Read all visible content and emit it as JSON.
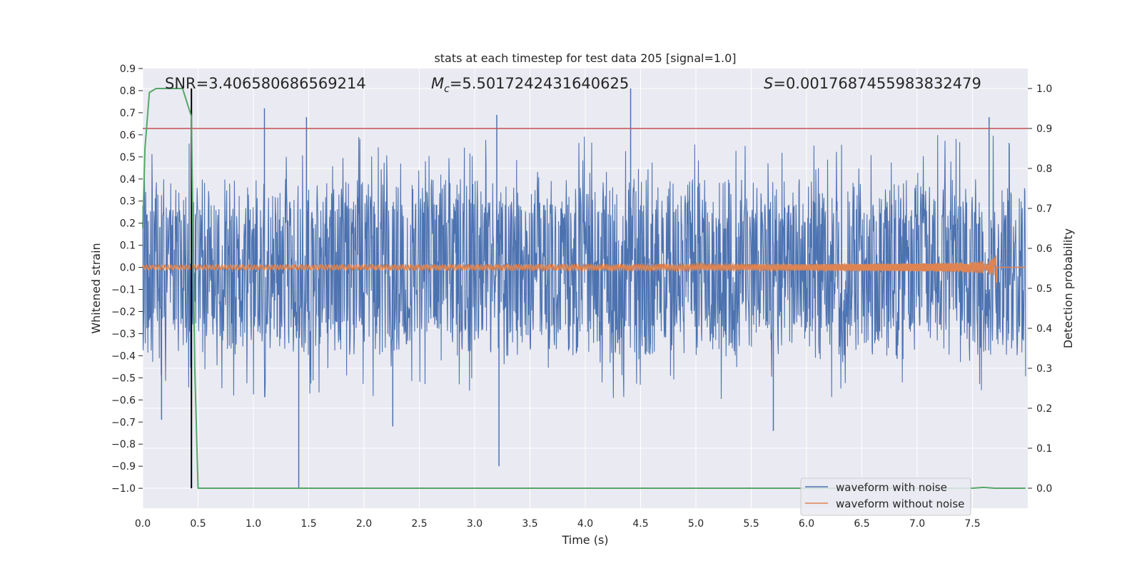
{
  "chart_data": {
    "type": "line",
    "title": "stats at each timestep for test data 205 [signal=1.0]",
    "xlabel": "Time (s)",
    "ylabel": "Whitened strain",
    "y2label": "Detection probability",
    "xlim": [
      0.0,
      8.0
    ],
    "ylim": [
      -1.09,
      0.9
    ],
    "y2lim": [
      -0.05,
      1.05
    ],
    "xticks": [
      0.0,
      0.5,
      1.0,
      1.5,
      2.0,
      2.5,
      3.0,
      3.5,
      4.0,
      4.5,
      5.0,
      5.5,
      6.0,
      6.5,
      7.0,
      7.5
    ],
    "xtick_labels": [
      "0.0",
      "0.5",
      "1.0",
      "1.5",
      "2.0",
      "2.5",
      "3.0",
      "3.5",
      "4.0",
      "4.5",
      "5.0",
      "5.5",
      "6.0",
      "6.5",
      "7.0",
      "7.5"
    ],
    "yticks": [
      0.9,
      0.8,
      0.7,
      0.6,
      0.5,
      0.4,
      0.3,
      0.2,
      0.1,
      0.0,
      -0.1,
      -0.2,
      -0.3,
      -0.4,
      -0.5,
      -0.6,
      -0.7,
      -0.8,
      -0.9,
      -1.0
    ],
    "ytick_labels": [
      "0.9",
      "0.8",
      "0.7",
      "0.6",
      "0.5",
      "0.4",
      "0.3",
      "0.2",
      "0.1",
      "0.0",
      "−0.1",
      "−0.2",
      "−0.3",
      "−0.4",
      "−0.5",
      "−0.6",
      "−0.7",
      "−0.8",
      "−0.9",
      "−1.0"
    ],
    "y2ticks": [
      1.0,
      0.9,
      0.8,
      0.7,
      0.6,
      0.5,
      0.4,
      0.3,
      0.2,
      0.1,
      0.0
    ],
    "y2tick_labels": [
      "1.0",
      "0.9",
      "0.8",
      "0.7",
      "0.6",
      "0.5",
      "0.4",
      "0.3",
      "0.2",
      "0.1",
      "0.0"
    ],
    "annotations": {
      "snr": "SNR=3.406580686569214",
      "mc_symbol": "M",
      "mc_sub": "c",
      "mc_value": "=5.5017242431640625",
      "s_symbol": "S",
      "s_value": "=0.0017687455983832479"
    },
    "threshold": {
      "axis": "y2",
      "value": 0.9,
      "color": "#c44e52"
    },
    "detection_marker": {
      "x": 0.44,
      "y_from": -1.0,
      "y_to": 0.81,
      "color": "#000000"
    },
    "series": [
      {
        "name": "waveform with noise",
        "axis": "y",
        "color": "#4c72b0",
        "description": "dense whitened-strain noise; envelope roughly +/-0.3 to +/-0.6 with notable spikes",
        "spikes": [
          {
            "x": 1.1,
            "y": 0.72
          },
          {
            "x": 1.48,
            "y": 0.68
          },
          {
            "x": 3.2,
            "y": 0.69
          },
          {
            "x": 4.41,
            "y": 0.81
          },
          {
            "x": 7.65,
            "y": 0.68
          },
          {
            "x": 1.41,
            "y": -1.0
          },
          {
            "x": 3.22,
            "y": -0.9
          },
          {
            "x": 2.26,
            "y": -0.72
          },
          {
            "x": 5.7,
            "y": -0.74
          },
          {
            "x": 0.17,
            "y": -0.69
          }
        ]
      },
      {
        "name": "waveform without noise",
        "axis": "y",
        "color": "#dd8452",
        "description": "chirp signal: small oscillation growing toward merger near 7.72 s, peak amplitude about 0.07",
        "merger_time": 7.72,
        "initial_amplitude": 0.01,
        "peak_amplitude": 0.075
      },
      {
        "name": "detection probability",
        "axis": "y2",
        "color": "#55a868",
        "x": [
          0.0,
          0.02,
          0.06,
          0.12,
          0.2,
          0.3,
          0.36,
          0.44,
          0.47,
          0.5,
          7.5,
          7.6,
          7.7,
          7.98
        ],
        "values": [
          0.65,
          0.85,
          0.99,
          1.0,
          1.0,
          1.0,
          1.0,
          0.93,
          0.3,
          0.0,
          0.0,
          0.002,
          0.0,
          0.0
        ]
      }
    ],
    "legend": {
      "position": "lower-right",
      "entries": [
        {
          "label": "waveform with noise",
          "color": "#4c72b0"
        },
        {
          "label": "waveform without noise",
          "color": "#dd8452"
        }
      ]
    },
    "grid": true
  }
}
